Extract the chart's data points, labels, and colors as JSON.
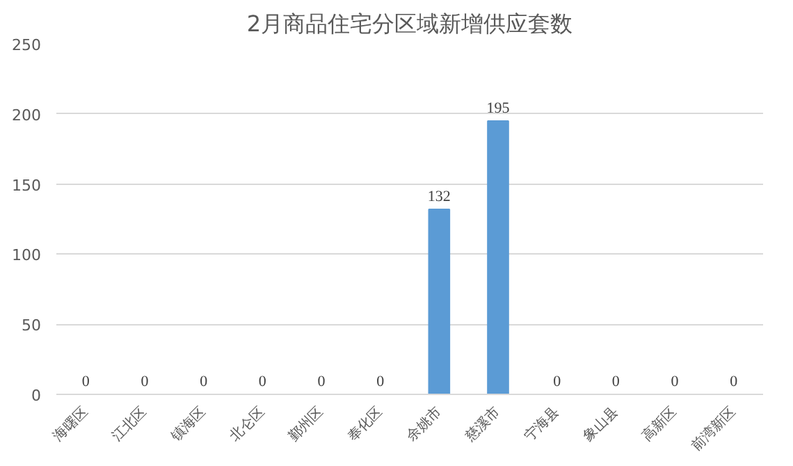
{
  "chart_data": {
    "type": "bar",
    "title": "2月商品住宅分区域新增供应套数",
    "categories": [
      "海曙区",
      "江北区",
      "镇海区",
      "北仑区",
      "鄞州区",
      "奉化区",
      "余姚市",
      "慈溪市",
      "宁海县",
      "象山县",
      "高新区",
      "前湾新区"
    ],
    "values": [
      0,
      0,
      0,
      0,
      0,
      0,
      132,
      195,
      0,
      0,
      0,
      0
    ],
    "color": "#5b9bd5",
    "ylim": [
      0,
      250
    ],
    "yticks": [
      0,
      50,
      100,
      150,
      200,
      250
    ],
    "grid": "y",
    "data_labels": true
  }
}
